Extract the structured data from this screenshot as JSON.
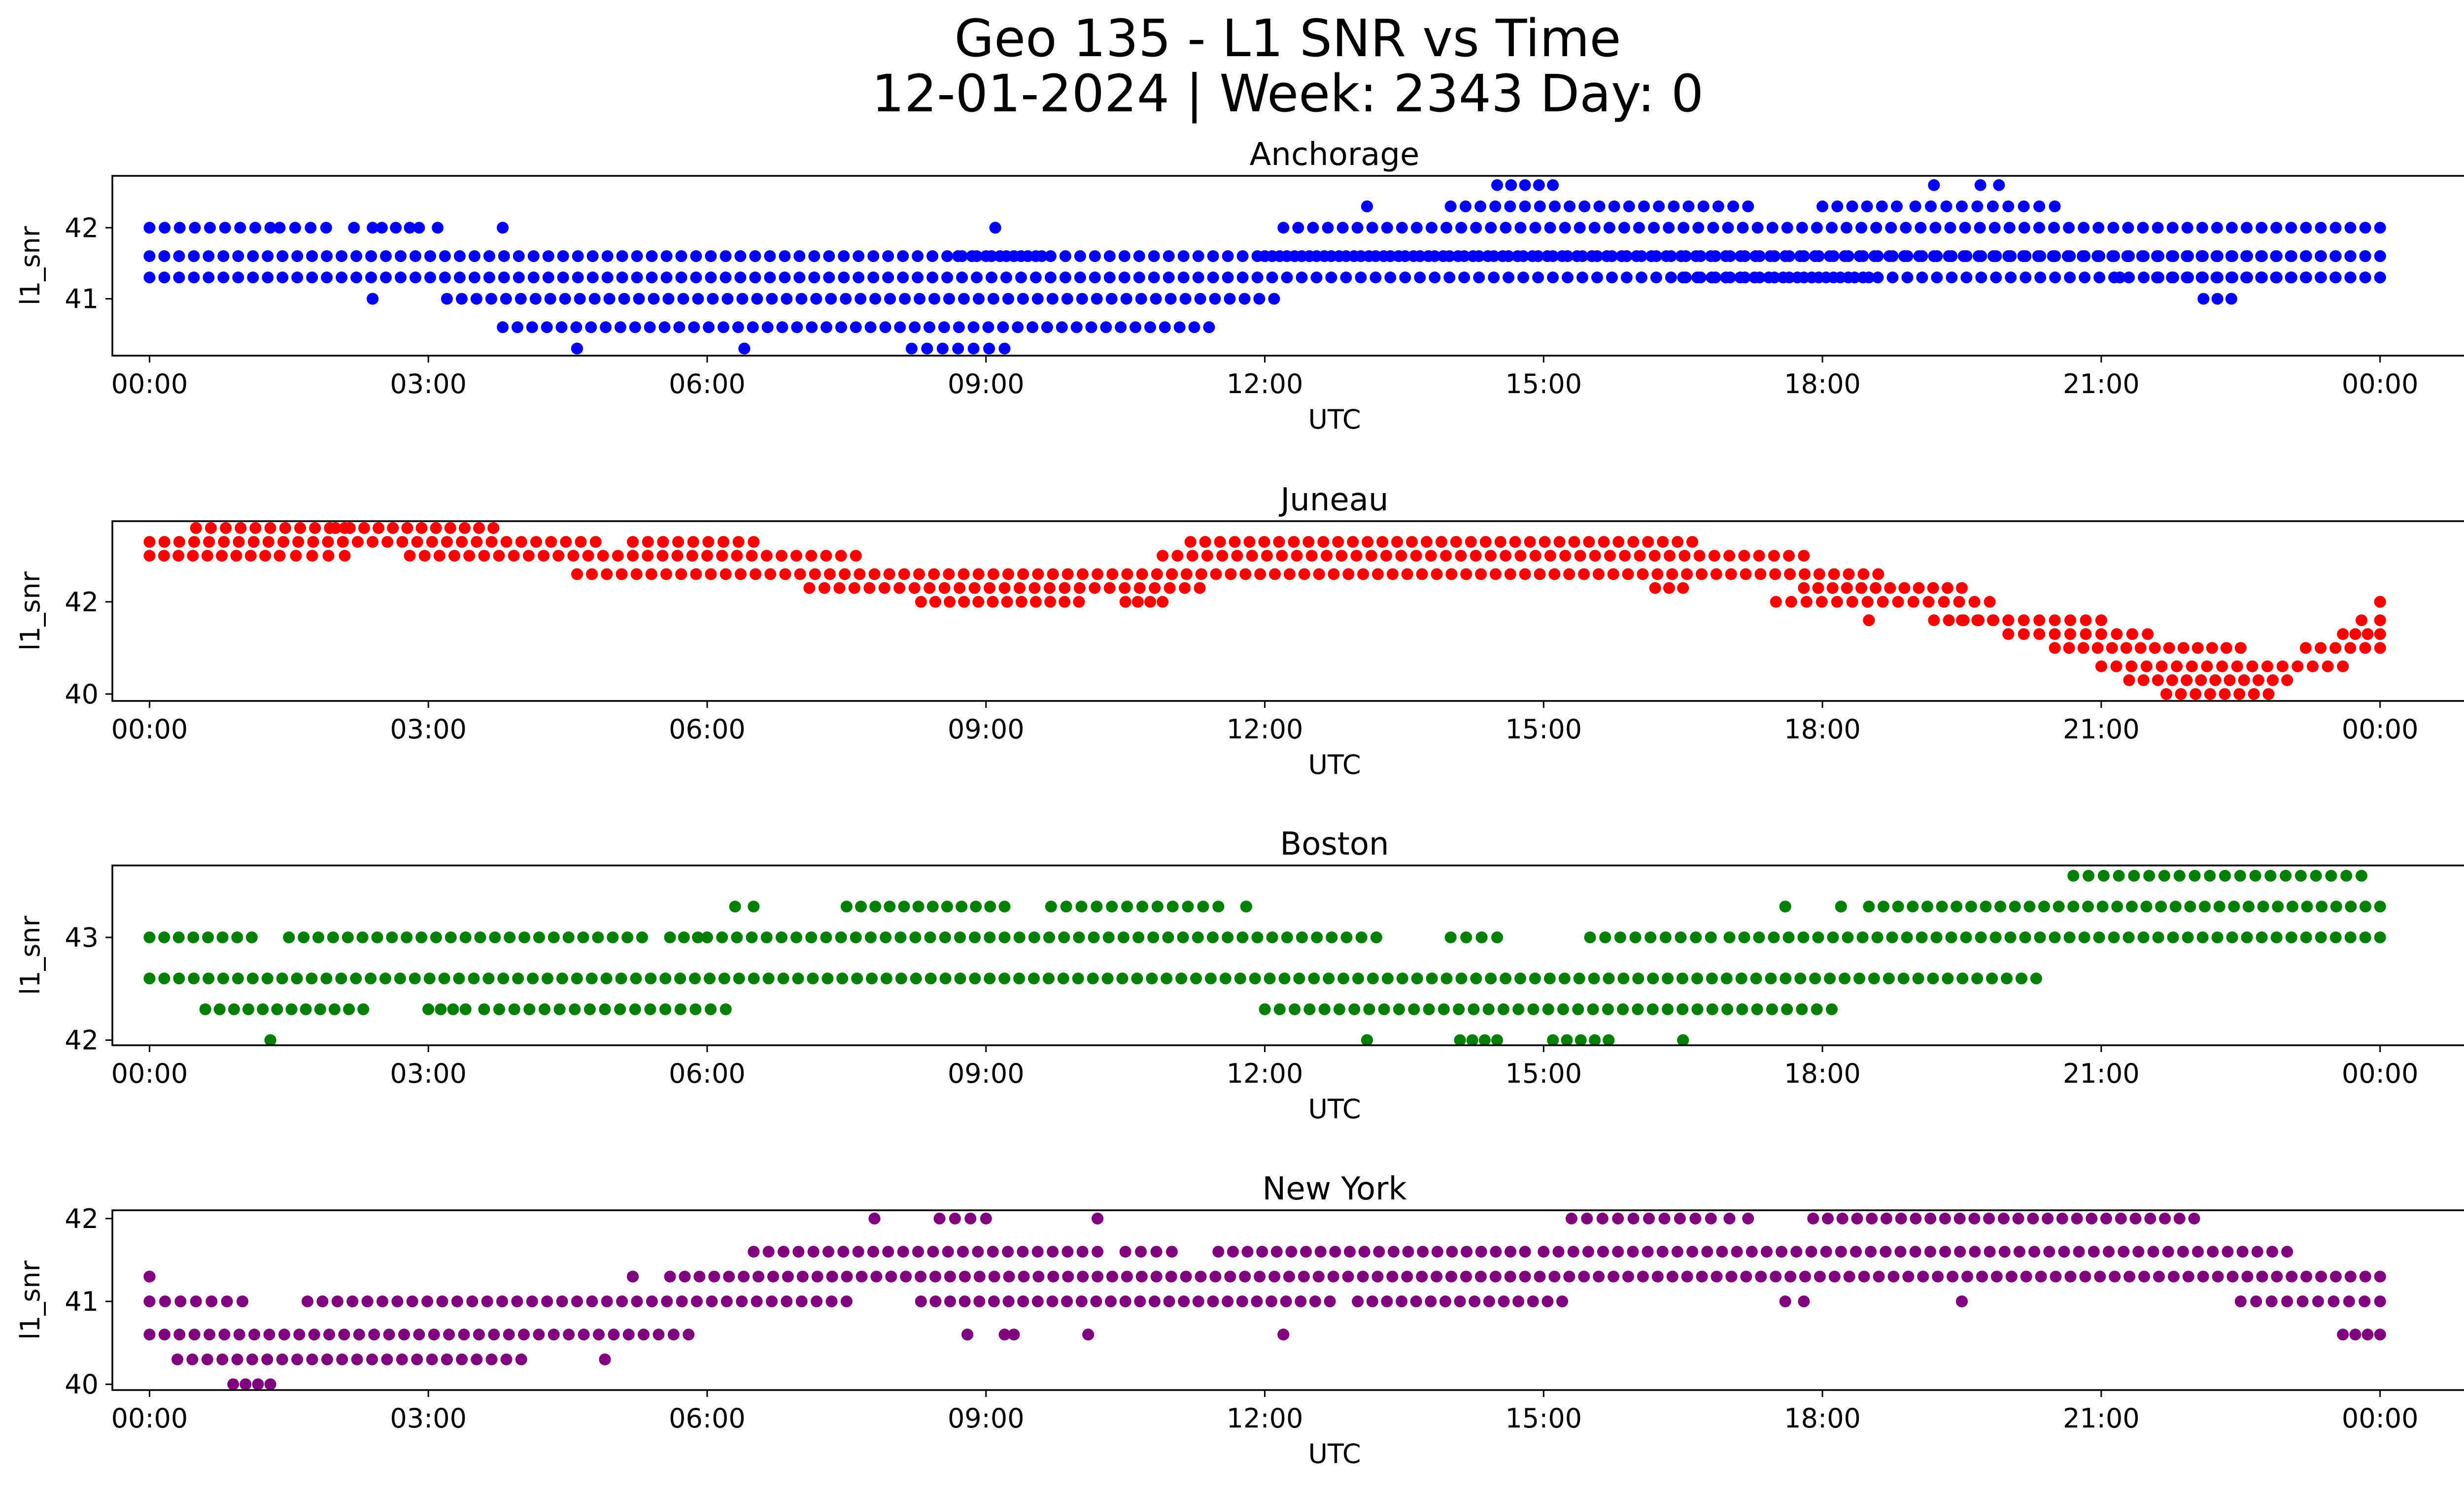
{
  "figure": {
    "title_line1": "Geo 135 - L1 SNR vs Time",
    "title_line2": "12-01-2024 | Week: 2343 Day: 0"
  },
  "chart_data": [
    {
      "type": "scatter",
      "title": "Anchorage",
      "xlabel": "UTC",
      "ylabel": "l1_snr",
      "color": "#0000ff",
      "x_ticks": [
        "00:00",
        "03:00",
        "06:00",
        "09:00",
        "12:00",
        "15:00",
        "18:00",
        "21:00",
        "00:00"
      ],
      "xlim_hours": [
        -0.4,
        25.9
      ],
      "y_ticks": [
        41,
        42
      ],
      "ylim": [
        40.2,
        42.73
      ],
      "grid": false,
      "series": [
        {
          "values": [
            [
              0,
              41.3,
              24
            ],
            [
              0,
              41.6,
              24
            ],
            [
              0,
              42.0,
              1.3
            ],
            [
              1.4,
              42.0,
              1.9
            ],
            [
              2.2,
              42.0,
              2.4
            ],
            [
              2.5,
              42.0,
              2.8
            ],
            [
              2.9,
              42.0,
              3.1
            ],
            [
              3.8,
              42.0,
              3.8
            ],
            [
              3.2,
              41.0,
              12.1
            ],
            [
              3.8,
              40.6,
              11.4
            ],
            [
              2.4,
              41.0,
              2.4
            ],
            [
              4.6,
              40.3,
              4.6
            ],
            [
              6.4,
              40.3,
              6.4
            ],
            [
              8.2,
              40.3,
              9.2
            ],
            [
              8.7,
              41.6,
              9.6
            ],
            [
              9.1,
              42.0,
              9.1
            ],
            [
              12.0,
              41.6,
              24
            ],
            [
              12.2,
              42.0,
              24
            ],
            [
              13.1,
              42.3,
              13.1
            ],
            [
              14.0,
              42.3,
              17.2
            ],
            [
              18.0,
              42.3,
              18.8
            ],
            [
              19.0,
              42.3,
              20.5
            ],
            [
              14.5,
              42.6,
              15.1
            ],
            [
              19.2,
              42.6,
              19.2
            ],
            [
              19.7,
              42.6,
              19.9
            ],
            [
              16.5,
              41.3,
              18.5
            ],
            [
              21.2,
              41.3,
              21.2
            ],
            [
              21.6,
              41.3,
              24
            ],
            [
              22.1,
              41.0,
              22.4
            ]
          ]
        }
      ]
    },
    {
      "type": "scatter",
      "title": "Juneau",
      "xlabel": "UTC",
      "ylabel": "l1_snr",
      "color": "#ff0000",
      "x_ticks": [
        "00:00",
        "03:00",
        "06:00",
        "09:00",
        "12:00",
        "15:00",
        "18:00",
        "21:00",
        "00:00"
      ],
      "xlim_hours": [
        -0.4,
        25.9
      ],
      "y_ticks": [
        40,
        42
      ],
      "ylim": [
        39.85,
        43.75
      ],
      "grid": false,
      "series": [
        {
          "values": [
            [
              0,
              43.0,
              1.4
            ],
            [
              0,
              43.3,
              4.8
            ],
            [
              0.5,
              43.6,
              2.1
            ],
            [
              2.0,
              43.6,
              3.7
            ],
            [
              1.4,
              43.0,
              2.1
            ],
            [
              2.8,
              43.0,
              7.6
            ],
            [
              4.6,
              42.6,
              11.0
            ],
            [
              5.2,
              43.3,
              6.5
            ],
            [
              7.1,
              42.3,
              11.3
            ],
            [
              8.3,
              42.0,
              10.0
            ],
            [
              10.5,
              42.0,
              10.9
            ],
            [
              10.9,
              43.0,
              17.8
            ],
            [
              11.2,
              43.3,
              16.6
            ],
            [
              11.0,
              42.6,
              18.6
            ],
            [
              16.2,
              42.3,
              16.5
            ],
            [
              17.5,
              42.0,
              19.8
            ],
            [
              17.8,
              42.3,
              19.5
            ],
            [
              18.5,
              41.6,
              18.5
            ],
            [
              19.2,
              41.6,
              20.0
            ],
            [
              19.5,
              41.6,
              21.0
            ],
            [
              20.0,
              41.3,
              21.5
            ],
            [
              20.5,
              41.0,
              22.5
            ],
            [
              21.0,
              40.6,
              23.6
            ],
            [
              21.3,
              40.3,
              23.0
            ],
            [
              21.7,
              40.0,
              22.8
            ],
            [
              23.2,
              41.0,
              24
            ],
            [
              23.6,
              41.3,
              24
            ],
            [
              23.8,
              41.6,
              24
            ],
            [
              24,
              42.0,
              24
            ]
          ]
        }
      ]
    },
    {
      "type": "scatter",
      "title": "Boston",
      "xlabel": "UTC",
      "ylabel": "l1_snr",
      "color": "#008000",
      "x_ticks": [
        "00:00",
        "03:00",
        "06:00",
        "09:00",
        "12:00",
        "15:00",
        "18:00",
        "21:00",
        "00:00"
      ],
      "xlim_hours": [
        -0.4,
        25.9
      ],
      "y_ticks": [
        42,
        43
      ],
      "ylim": [
        41.95,
        43.7
      ],
      "grid": false,
      "series": [
        {
          "values": [
            [
              0,
              42.6,
              20.3
            ],
            [
              0,
              43.0,
              1.1
            ],
            [
              1.5,
              43.0,
              5.3
            ],
            [
              5.6,
              43.0,
              5.9
            ],
            [
              6.0,
              43.0,
              13.2
            ],
            [
              14.0,
              43.0,
              14.5
            ],
            [
              15.5,
              43.0,
              16.8
            ],
            [
              17.0,
              43.0,
              24
            ],
            [
              0.6,
              42.3,
              2.3
            ],
            [
              3.0,
              42.3,
              3.4
            ],
            [
              3.6,
              42.3,
              6.2
            ],
            [
              12.0,
              42.3,
              18.1
            ],
            [
              1.3,
              42.0,
              1.3
            ],
            [
              13.1,
              42.0,
              13.1
            ],
            [
              14.1,
              42.0,
              14.5
            ],
            [
              15.1,
              42.0,
              15.7
            ],
            [
              16.5,
              42.0,
              16.5
            ],
            [
              6.3,
              43.3,
              6.5
            ],
            [
              7.5,
              43.3,
              9.2
            ],
            [
              9.7,
              43.3,
              11.5
            ],
            [
              11.8,
              43.3,
              11.8
            ],
            [
              17.6,
              43.3,
              17.6
            ],
            [
              18.2,
              43.3,
              18.2
            ],
            [
              18.5,
              43.3,
              24
            ],
            [
              20.7,
              43.6,
              23.8
            ]
          ]
        }
      ]
    },
    {
      "type": "scatter",
      "title": "New York",
      "xlabel": "UTC",
      "ylabel": "l1_snr",
      "color": "#800080",
      "x_ticks": [
        "00:00",
        "03:00",
        "06:00",
        "09:00",
        "12:00",
        "15:00",
        "18:00",
        "21:00",
        "00:00"
      ],
      "xlim_hours": [
        -0.4,
        25.9
      ],
      "y_ticks": [
        40,
        41,
        42
      ],
      "ylim": [
        39.93,
        42.1
      ],
      "grid": false,
      "series": [
        {
          "values": [
            [
              0,
              40.6,
              5.8
            ],
            [
              0.3,
              40.3,
              3.2
            ],
            [
              3.2,
              40.3,
              4.0
            ],
            [
              4.9,
              40.3,
              4.9
            ],
            [
              0.9,
              40.0,
              1.3
            ],
            [
              0,
              41.3,
              0
            ],
            [
              5.2,
              41.3,
              5.2
            ],
            [
              5.6,
              41.3,
              24
            ],
            [
              0,
              41.0,
              1.0
            ],
            [
              1.7,
              41.0,
              7.5
            ],
            [
              8.3,
              41.0,
              12.7
            ],
            [
              13.0,
              41.0,
              15.2
            ],
            [
              17.6,
              41.0,
              17.8
            ],
            [
              19.5,
              41.0,
              19.5
            ],
            [
              22.5,
              41.0,
              24
            ],
            [
              6.5,
              41.6,
              10.2
            ],
            [
              10.5,
              41.6,
              11.0
            ],
            [
              11.5,
              41.6,
              14.8
            ],
            [
              15.0,
              41.6,
              23.0
            ],
            [
              8.8,
              40.6,
              8.8
            ],
            [
              9.2,
              40.6,
              9.3
            ],
            [
              10.1,
              40.6,
              10.1
            ],
            [
              12.2,
              40.6,
              12.2
            ],
            [
              23.6,
              40.6,
              24
            ],
            [
              7.8,
              42.0,
              7.8
            ],
            [
              8.5,
              42.0,
              9.0
            ],
            [
              10.2,
              42.0,
              10.2
            ],
            [
              15.3,
              42.0,
              16.8
            ],
            [
              17.0,
              42.0,
              17.2
            ],
            [
              17.9,
              42.0,
              22.0
            ]
          ]
        }
      ]
    }
  ]
}
